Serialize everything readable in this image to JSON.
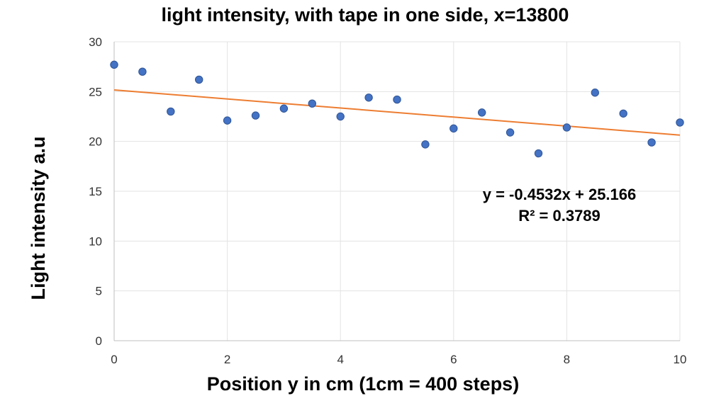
{
  "chart_data": {
    "type": "scatter",
    "title": "light intensity, with tape in one side, x=13800",
    "xlabel": "Position y in cm (1cm = 400 steps)",
    "ylabel": "Light intensity a.u",
    "xlim": [
      0,
      10
    ],
    "ylim": [
      0,
      30
    ],
    "x_ticks": [
      "0",
      "2",
      "4",
      "6",
      "8",
      "10"
    ],
    "y_ticks": [
      "0",
      "5",
      "10",
      "15",
      "20",
      "25",
      "30"
    ],
    "grid": true,
    "series": [
      {
        "x": [
          0,
          0.5,
          1,
          1.5,
          2,
          2.5,
          3,
          3.5,
          4,
          4.5,
          5,
          5.5,
          6,
          6.5,
          7,
          7.5,
          8,
          8.5,
          9,
          9.5,
          10
        ],
        "y": [
          27.7,
          27.0,
          23.0,
          26.2,
          22.1,
          22.6,
          23.3,
          23.8,
          22.5,
          24.4,
          24.2,
          19.7,
          21.3,
          22.9,
          20.9,
          18.8,
          21.4,
          24.9,
          22.8,
          19.9,
          21.9
        ],
        "color": "#4472c4"
      }
    ],
    "trendline": {
      "slope": -0.4532,
      "intercept": 25.166,
      "color": "#ed7d31",
      "equation_label": "y = -0.4532x + 25.166",
      "r2_label": "R² = 0.3789"
    }
  }
}
